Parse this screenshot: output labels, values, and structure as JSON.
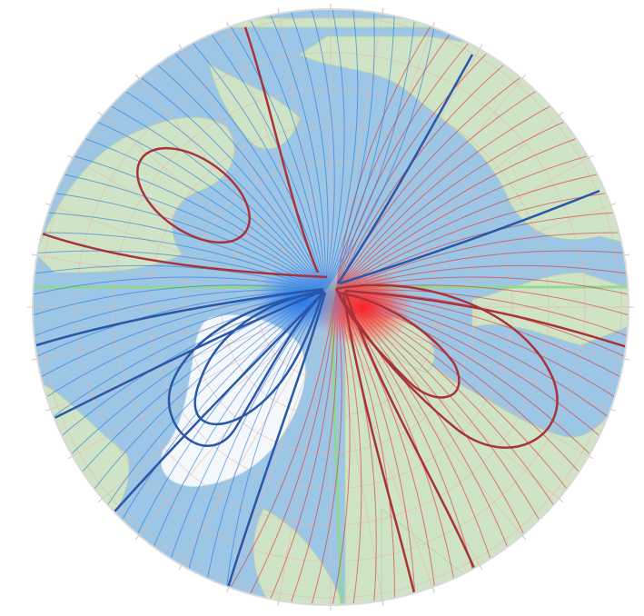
{
  "map": {
    "projection": "north-polar-stereographic",
    "subject": "magnetic-declination-isogonic-lines",
    "colors": {
      "ocean": "#9cc6e6",
      "land": "#cfe3c6",
      "ice": "#f4f8fb",
      "graticule": "#e7b7ad",
      "agonic_line": "#8fd88a",
      "east_declination": "#e02020",
      "west_declination": "#1a6fe0",
      "east_major": "#a8333a",
      "west_major": "#2a57a8",
      "rim": "#d9d9d9"
    },
    "legend": []
  }
}
